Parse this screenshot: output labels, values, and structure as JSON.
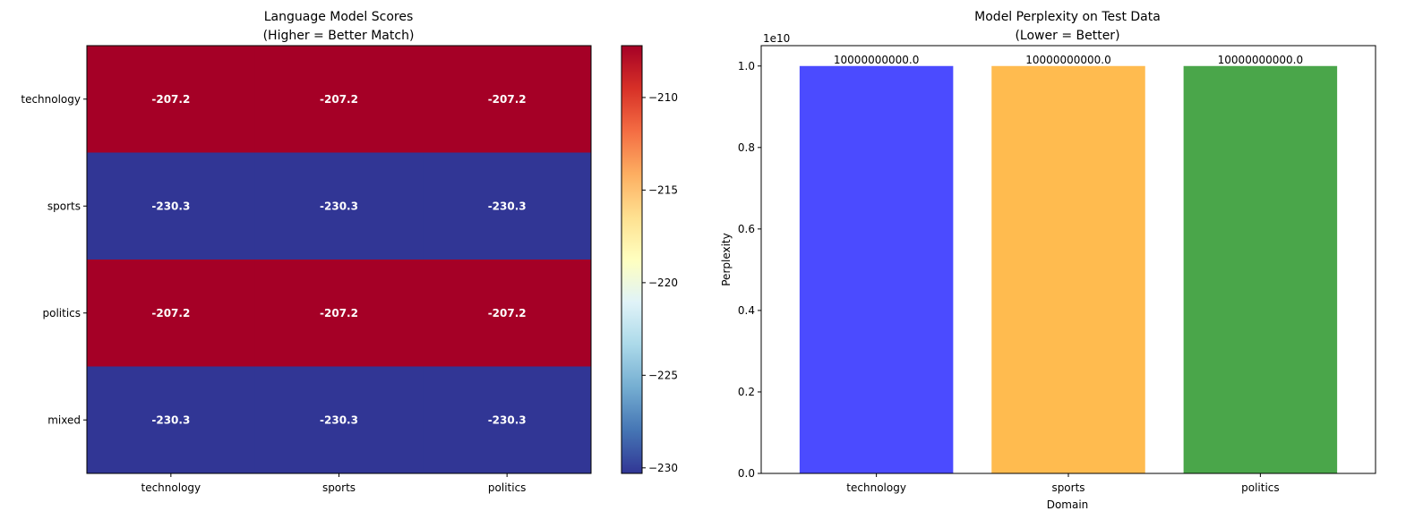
{
  "chart_data": [
    {
      "type": "heatmap",
      "title": "Language Model Scores",
      "subtitle": "(Higher = Better Match)",
      "rows": [
        "technology",
        "sports",
        "politics",
        "mixed"
      ],
      "columns": [
        "technology",
        "sports",
        "politics"
      ],
      "values": [
        [
          -207.2,
          -207.2,
          -207.2
        ],
        [
          -230.3,
          -230.3,
          -230.3
        ],
        [
          -207.2,
          -207.2,
          -207.2
        ],
        [
          -230.3,
          -230.3,
          -230.3
        ]
      ],
      "cell_labels": [
        [
          "-207.2",
          "-207.2",
          "-207.2"
        ],
        [
          "-230.3",
          "-230.3",
          "-230.3"
        ],
        [
          "-207.2",
          "-207.2",
          "-207.2"
        ],
        [
          "-230.3",
          "-230.3",
          "-230.3"
        ]
      ],
      "colormap": "RdYlBu_r",
      "colorbar": {
        "range": [
          -230.3,
          -207.2
        ],
        "ticks": [
          -210,
          -215,
          -220,
          -225,
          -230
        ],
        "tick_labels": [
          "−210",
          "−215",
          "−220",
          "−225",
          "−230"
        ]
      }
    },
    {
      "type": "bar",
      "title": "Model Perplexity on Test Data",
      "subtitle": "(Lower = Better)",
      "xlabel": "Domain",
      "ylabel": "Perplexity",
      "categories": [
        "technology",
        "sports",
        "politics"
      ],
      "values": [
        10000000000.0,
        10000000000.0,
        10000000000.0
      ],
      "value_labels": [
        "10000000000.0",
        "10000000000.0",
        "10000000000.0"
      ],
      "colors": [
        "#4b4bff",
        "#ffbb4f",
        "#4aa64a"
      ],
      "ylim": [
        0,
        1.05
      ],
      "yticks": [
        0.0,
        0.2,
        0.4,
        0.6,
        0.8,
        1.0
      ],
      "ytick_labels": [
        "0.0",
        "0.2",
        "0.4",
        "0.6",
        "0.8",
        "1.0"
      ],
      "scale_note": "1e10"
    }
  ]
}
